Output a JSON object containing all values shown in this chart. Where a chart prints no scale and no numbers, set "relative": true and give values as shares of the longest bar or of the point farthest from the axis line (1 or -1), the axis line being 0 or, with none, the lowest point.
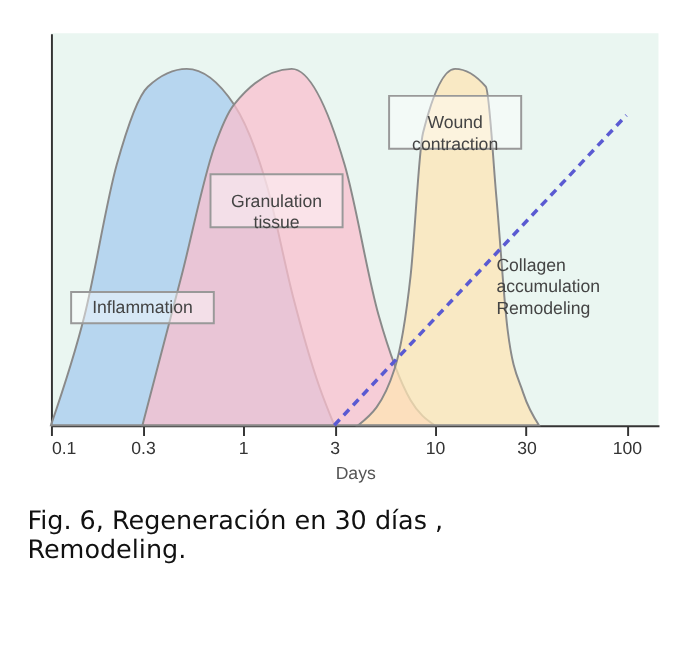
{
  "chart_data": {
    "type": "area",
    "relative": true,
    "xlabel": "Days",
    "log": "x",
    "xlim": [
      0.1,
      147
    ],
    "xticks": [
      0.1,
      0.3,
      1,
      3,
      10,
      30,
      100
    ],
    "grid": false,
    "legend": false,
    "annotations": [
      "Fig. 6, Regeneración en 30 días , Remodeling."
    ],
    "series": [
      {
        "name": "Inflammation",
        "color": "#a6cbee",
        "x": [
          0.1,
          0.15,
          0.22,
          0.32,
          0.51,
          0.9,
          1.34,
          1.83,
          2.5,
          3
        ],
        "values": [
          0,
          0.31,
          0.73,
          0.95,
          1,
          0.9,
          0.67,
          0.36,
          0.11,
          0
        ]
      },
      {
        "name": "Granulation tissue",
        "color": "#f9bfcd",
        "x": [
          0.3,
          0.48,
          0.71,
          0.9,
          1.8,
          3.4,
          5.1,
          7.5,
          10
        ],
        "values": [
          0,
          0.42,
          0.78,
          0.9,
          1,
          0.73,
          0.31,
          0.07,
          0
        ]
      },
      {
        "name": "Wound contraction",
        "color": "#fde4b4",
        "x": [
          4,
          6.2,
          7.5,
          8.7,
          12.8,
          18.5,
          21,
          24,
          29,
          35
        ],
        "values": [
          0,
          0.16,
          0.42,
          0.82,
          1,
          0.95,
          0.64,
          0.27,
          0.09,
          0
        ]
      },
      {
        "name": "Collagen accumulation Remodeling",
        "type": "line",
        "line_style": "dashed",
        "color": "#5a5ad2",
        "x": [
          3,
          100
        ],
        "values": [
          0,
          0.87
        ]
      }
    ]
  }
}
